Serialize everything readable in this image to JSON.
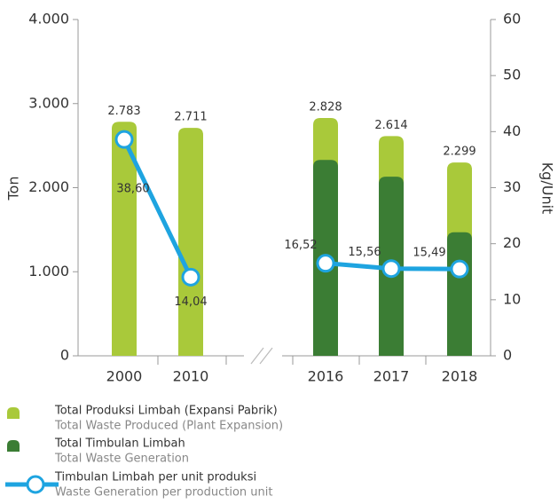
{
  "chart_data": {
    "type": "bar",
    "ylabel": "Ton",
    "y2label": "Kg/Unit",
    "categories": [
      "2000",
      "2010",
      null,
      "2016",
      "2017",
      "2018"
    ],
    "series": [
      {
        "name": "Total Produksi Limbah (Expansi Pabrik)",
        "translation": "Total Waste Produced (Plant Expansion)",
        "color": "#a9c93a",
        "values": [
          2783,
          2711,
          null,
          2828,
          2614,
          2299
        ],
        "value_labels": [
          "2.783",
          "2.711",
          null,
          "2.828",
          "2.614",
          "2.299"
        ]
      },
      {
        "name": "Total Timbulan Limbah",
        "translation": "Total Waste Generation",
        "color": "#3b7d34",
        "values": [
          null,
          null,
          null,
          2330,
          2130,
          1470
        ]
      },
      {
        "name": "Timbulan Limbah per unit produksi",
        "translation": "Waste Generation per production unit",
        "color": "#1ea4e0",
        "type": "line",
        "axis": "y2",
        "values": [
          38.6,
          14.04,
          null,
          16.52,
          15.56,
          15.49
        ],
        "value_labels": [
          "38,60",
          "14,04",
          null,
          "16,52",
          "15,56",
          "15,49"
        ]
      }
    ],
    "ylim": [
      0,
      4000
    ],
    "yticks": [
      0,
      {
        "value": 1000,
        "label": "1.000"
      },
      {
        "value": 2000,
        "label": "2.000"
      },
      {
        "value": 3000,
        "label": "3.000"
      },
      {
        "value": 4000,
        "label": "4.000"
      }
    ],
    "y2lim": [
      0,
      60
    ],
    "y2ticks": [
      0,
      10,
      20,
      30,
      40,
      50,
      60
    ]
  }
}
